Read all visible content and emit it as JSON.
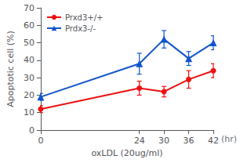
{
  "chart_data": {
    "type": "line",
    "xlabel": "oxLDL (20ug/ml)",
    "ylabel": "Apoptotic cell (%)",
    "annotations": [
      "(hr)"
    ],
    "x": [
      0,
      24,
      30,
      36,
      42
    ],
    "series": [
      {
        "name": "Prxd3+/+",
        "color": "#ee1111",
        "marker": "circle",
        "values": [
          12,
          24,
          22,
          29,
          34
        ],
        "yerr": [
          2,
          4,
          3,
          5,
          4
        ]
      },
      {
        "name": "Prdx3-/-",
        "color": "#1155cc",
        "marker": "triangle",
        "values": [
          19,
          38,
          52,
          41,
          50
        ],
        "yerr": [
          2,
          6,
          5,
          4,
          4
        ]
      }
    ],
    "xlim": [
      0,
      42
    ],
    "xticks": [
      0,
      24,
      30,
      36,
      42
    ],
    "ylim": [
      0,
      70
    ],
    "yticks": [
      0,
      10,
      20,
      30,
      40,
      50,
      60,
      70
    ],
    "grid": false,
    "legend": "upper left"
  }
}
